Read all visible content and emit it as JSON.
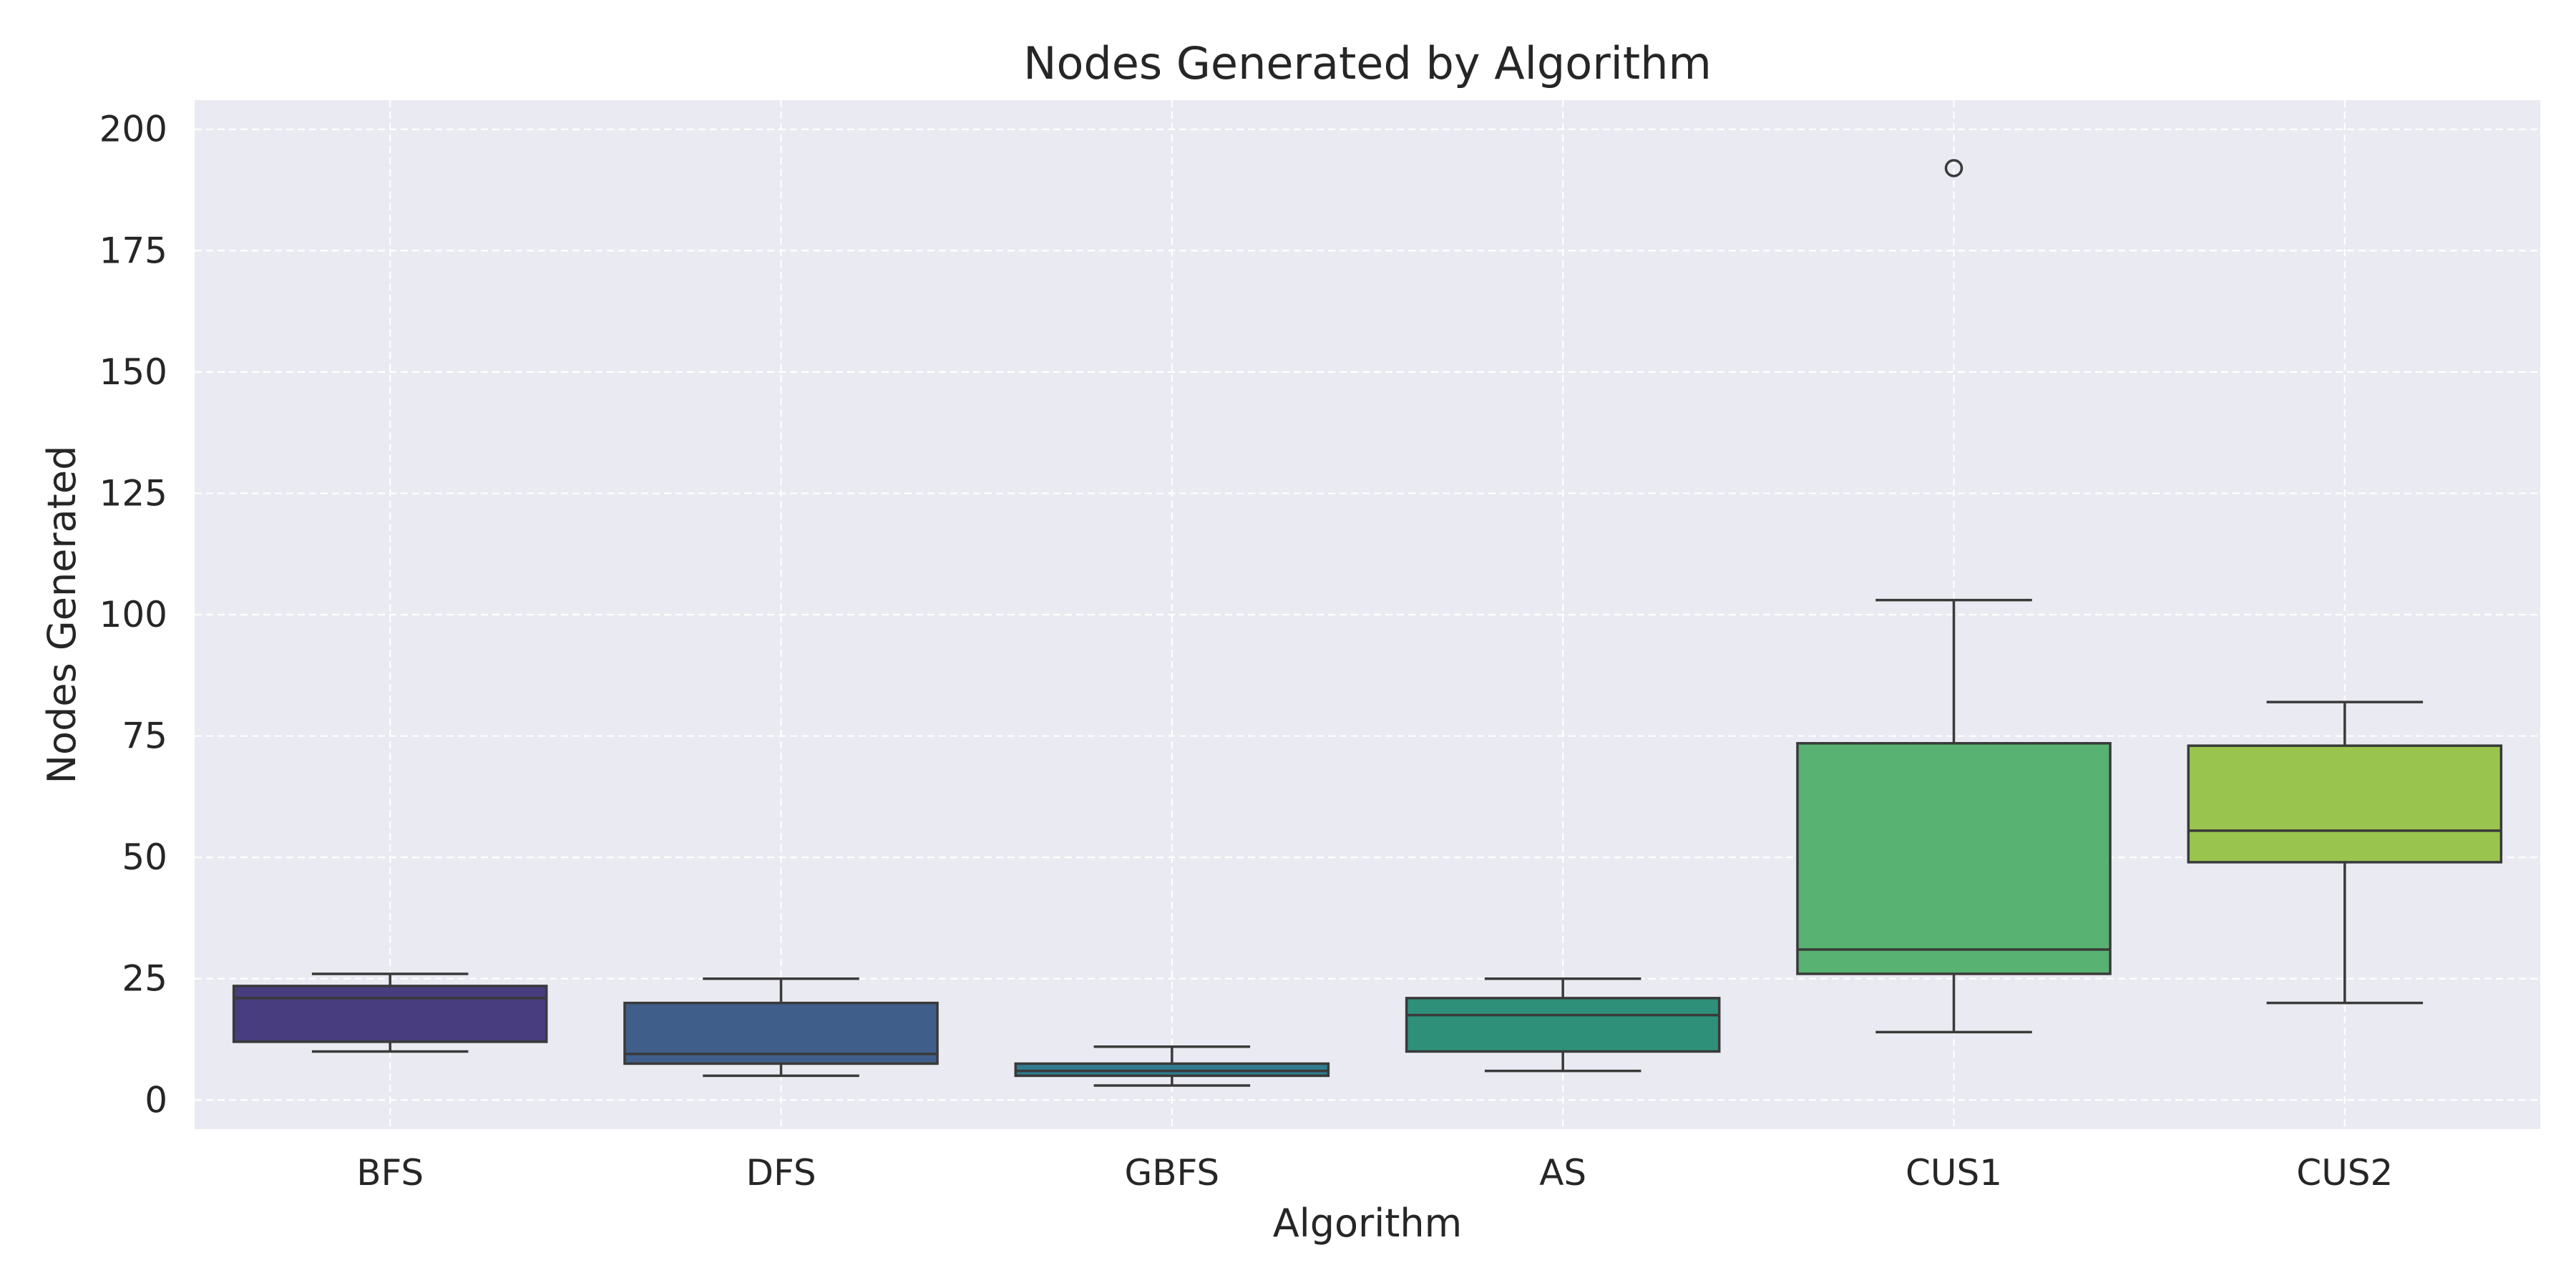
{
  "chart_data": {
    "type": "box",
    "title": "Nodes Generated by Algorithm",
    "xlabel": "Algorithm",
    "ylabel": "Nodes Generated",
    "ylim": [
      -6,
      206
    ],
    "yticks": [
      0,
      25,
      50,
      75,
      100,
      125,
      150,
      175,
      200
    ],
    "grid": true,
    "categories": [
      "BFS",
      "DFS",
      "GBFS",
      "AS",
      "CUS1",
      "CUS2"
    ],
    "boxes": [
      {
        "name": "BFS",
        "whisker_low": 10,
        "q1": 12,
        "median": 21,
        "q3": 23.5,
        "whisker_high": 26,
        "outliers": [],
        "color": "#483d7f"
      },
      {
        "name": "DFS",
        "whisker_low": 5,
        "q1": 7.5,
        "median": 9.5,
        "q3": 20,
        "whisker_high": 25,
        "outliers": [],
        "color": "#3f5f8a"
      },
      {
        "name": "GBFS",
        "whisker_low": 3,
        "q1": 5,
        "median": 6,
        "q3": 7.5,
        "whisker_high": 11,
        "outliers": [],
        "color": "#2e7b8e"
      },
      {
        "name": "AS",
        "whisker_low": 6,
        "q1": 10,
        "median": 17.5,
        "q3": 21,
        "whisker_high": 25,
        "outliers": [],
        "color": "#2e9079"
      },
      {
        "name": "CUS1",
        "whisker_low": 14,
        "q1": 26,
        "median": 31,
        "q3": 73.5,
        "whisker_high": 103,
        "outliers": [
          192
        ],
        "color": "#58b272"
      },
      {
        "name": "CUS2",
        "whisker_low": 20,
        "q1": 49,
        "median": 55.5,
        "q3": 73,
        "whisker_high": 82,
        "outliers": [],
        "color": "#99c54e"
      }
    ]
  }
}
